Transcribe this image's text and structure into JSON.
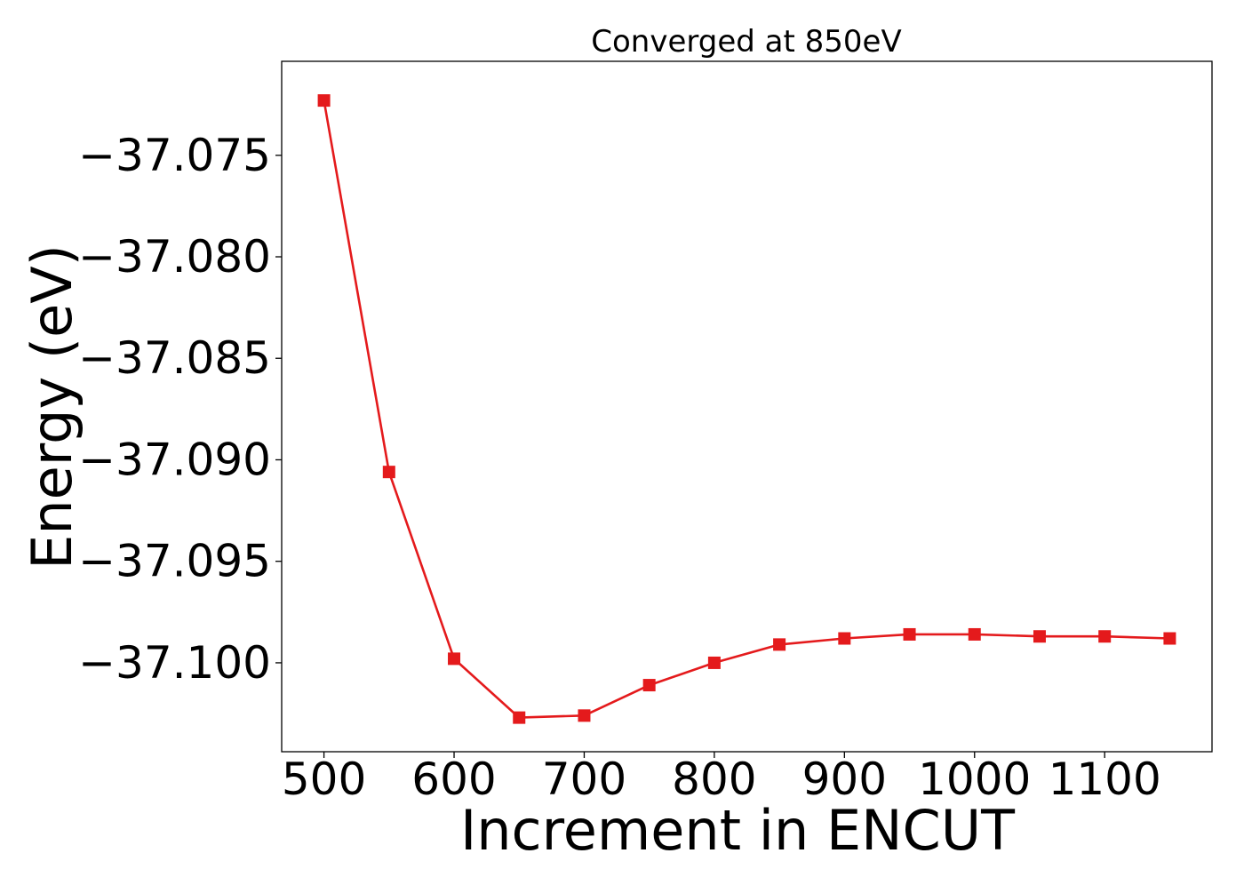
{
  "chart_data": {
    "type": "line",
    "title": "Converged at 850eV",
    "xlabel": "Increment in ENCUT",
    "ylabel": "Energy (eV)",
    "xlim": [
      467.5,
      1182.5
    ],
    "ylim": [
      -37.10438,
      -37.07037
    ],
    "xticks": [
      500,
      600,
      700,
      800,
      900,
      1000,
      1100
    ],
    "xtick_labels": [
      "500",
      "600",
      "700",
      "800",
      "900",
      "1000",
      "1100"
    ],
    "yticks": [
      -37.1,
      -37.095,
      -37.09,
      -37.085,
      -37.08,
      -37.075
    ],
    "ytick_labels": [
      "−37.100",
      "−37.095",
      "−37.090",
      "−37.085",
      "−37.080",
      "−37.075"
    ],
    "grid": false,
    "series": [
      {
        "color": "#e41a1c",
        "marker": "square",
        "x": [
          500,
          550,
          600,
          650,
          700,
          750,
          800,
          850,
          900,
          950,
          1000,
          1050,
          1100,
          1150
        ],
        "y": [
          -37.0723,
          -37.0906,
          -37.0998,
          -37.1027,
          -37.1026,
          -37.1011,
          -37.1,
          -37.0991,
          -37.0988,
          -37.0986,
          -37.0986,
          -37.0987,
          -37.0987,
          -37.0988
        ]
      }
    ]
  }
}
